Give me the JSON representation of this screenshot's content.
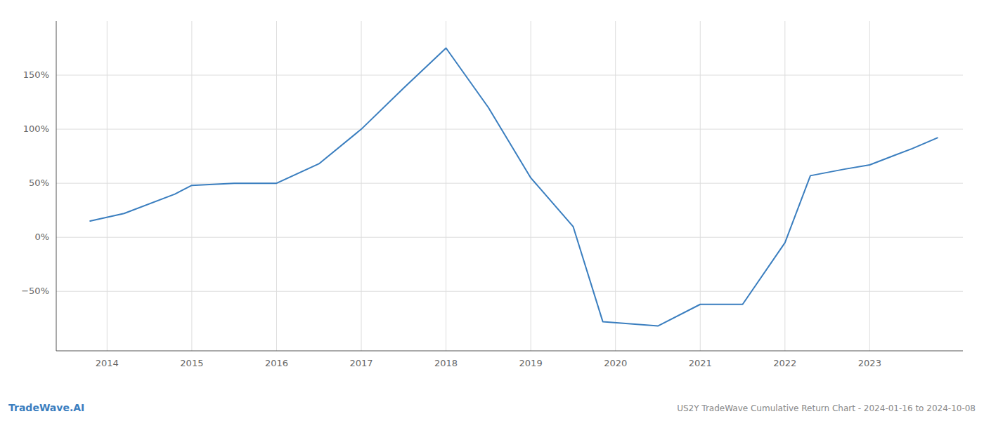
{
  "chart_data": {
    "type": "line",
    "x": [
      2013.8,
      2014.2,
      2014.8,
      2015.0,
      2015.5,
      2016.0,
      2016.5,
      2017.0,
      2017.5,
      2018.0,
      2018.5,
      2019.0,
      2019.5,
      2019.85,
      2020.5,
      2021.0,
      2021.5,
      2022.0,
      2022.3,
      2022.7,
      2023.0,
      2023.5,
      2023.8
    ],
    "values": [
      15,
      22,
      40,
      48,
      50,
      50,
      68,
      100,
      138,
      175,
      120,
      55,
      10,
      -78,
      -82,
      -62,
      -62,
      -5,
      57,
      63,
      67,
      82,
      92
    ],
    "color": "#3a7ebf",
    "xlim": [
      2013.4,
      2024.1
    ],
    "xticks": [
      2014,
      2015,
      2016,
      2017,
      2018,
      2019,
      2020,
      2021,
      2022,
      2023
    ],
    "ylim": [
      -105,
      200
    ],
    "yticks": [
      {
        "value": -50,
        "label": "−50%"
      },
      {
        "value": 0,
        "label": "0%"
      },
      {
        "value": 50,
        "label": "50%"
      },
      {
        "value": 100,
        "label": "100%"
      },
      {
        "value": 150,
        "label": "150%"
      }
    ],
    "grid": true,
    "annotations": [
      "TradeWave.AI",
      "US2Y TradeWave Cumulative Return Chart - 2024-01-16 to 2024-10-08"
    ]
  }
}
